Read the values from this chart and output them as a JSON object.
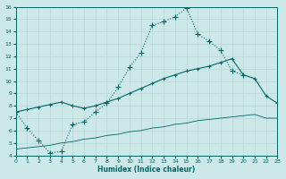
{
  "xlabel": "Humidex (Indice chaleur)",
  "xlim": [
    0,
    23
  ],
  "ylim": [
    4,
    16
  ],
  "xticks": [
    0,
    1,
    2,
    3,
    4,
    5,
    6,
    7,
    8,
    9,
    10,
    11,
    12,
    13,
    14,
    15,
    16,
    17,
    18,
    19,
    20,
    21,
    22,
    23
  ],
  "yticks": [
    4,
    5,
    6,
    7,
    8,
    9,
    10,
    11,
    12,
    13,
    14,
    15,
    16
  ],
  "bg_color": "#cce8e8",
  "grid_color": "#b8d8d8",
  "line_color": "#006666",
  "line1_x": [
    0,
    1,
    2,
    3,
    4,
    5,
    6,
    7,
    8,
    9,
    10,
    11,
    12,
    13,
    14,
    15,
    16,
    17,
    18,
    19,
    20
  ],
  "line1_y": [
    7.5,
    6.2,
    5.2,
    4.2,
    4.3,
    6.5,
    6.7,
    7.5,
    8.2,
    9.5,
    11.1,
    12.3,
    14.5,
    14.8,
    15.2,
    15.9,
    13.8,
    13.2,
    12.5,
    10.8,
    10.5
  ],
  "line2_x": [
    0,
    1,
    2,
    3,
    4,
    5,
    6,
    7,
    8,
    9,
    10,
    11,
    12,
    13,
    14,
    15,
    16,
    17,
    18,
    19,
    20,
    21,
    22,
    23
  ],
  "line2_y": [
    7.5,
    7.7,
    7.9,
    8.1,
    8.3,
    8.0,
    7.8,
    8.0,
    8.3,
    8.6,
    9.0,
    9.4,
    9.8,
    10.2,
    10.5,
    10.8,
    11.0,
    11.2,
    11.5,
    11.8,
    10.5,
    10.2,
    8.8,
    8.2
  ],
  "line3_x": [
    0,
    1,
    2,
    3,
    4,
    5,
    6,
    7,
    8,
    9,
    10,
    11,
    12,
    13,
    14,
    15,
    16,
    17,
    18,
    19,
    20,
    21,
    22,
    23
  ],
  "line3_y": [
    4.5,
    4.6,
    4.7,
    4.8,
    5.0,
    5.1,
    5.3,
    5.4,
    5.6,
    5.7,
    5.9,
    6.0,
    6.2,
    6.3,
    6.5,
    6.6,
    6.8,
    6.9,
    7.0,
    7.1,
    7.2,
    7.3,
    7.0,
    7.0
  ]
}
